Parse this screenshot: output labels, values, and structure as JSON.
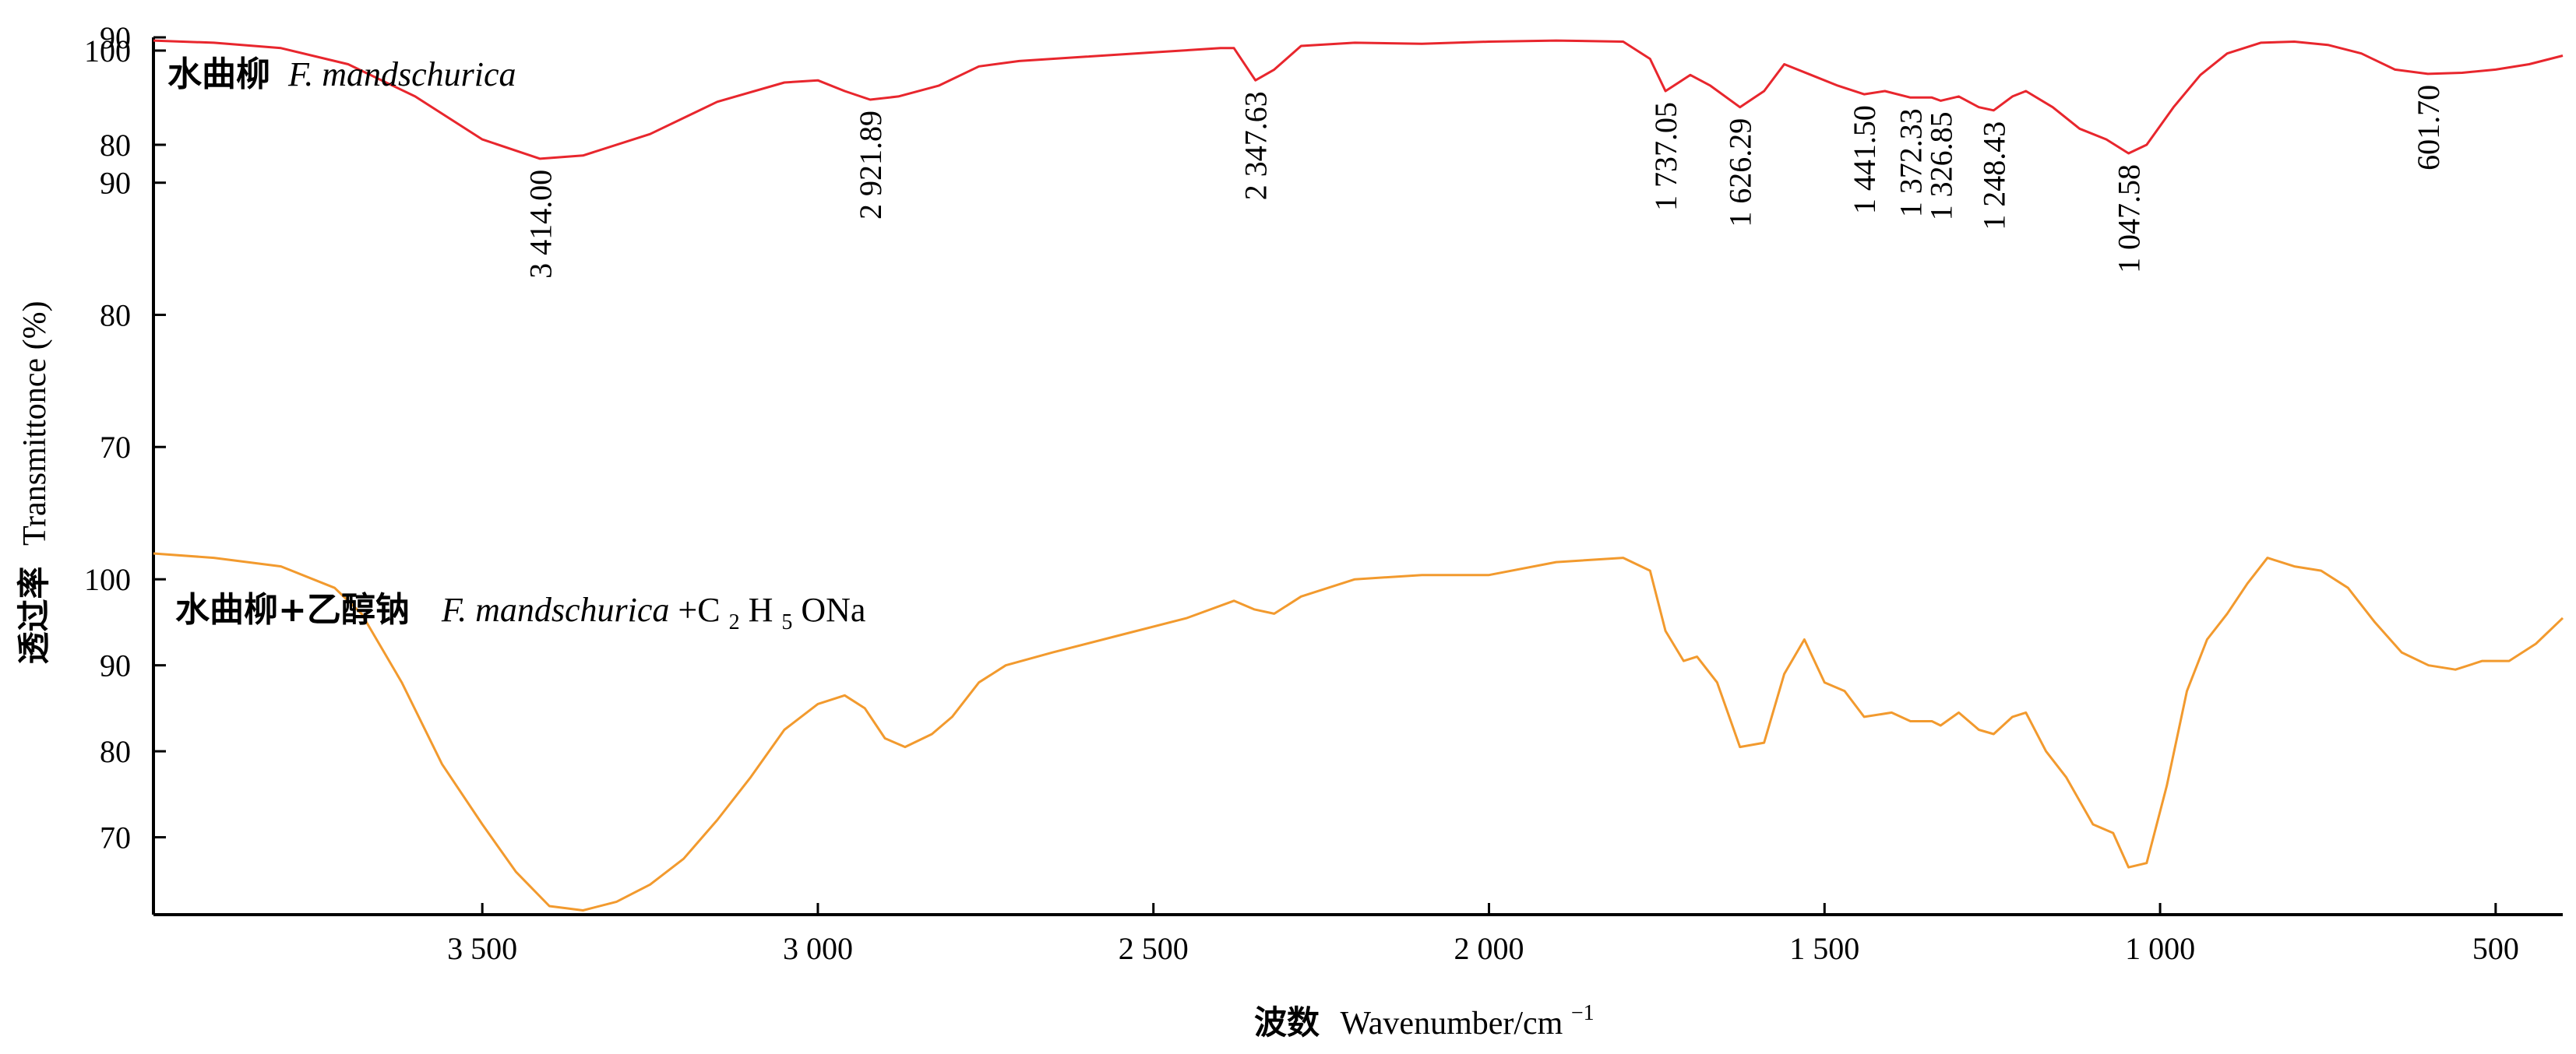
{
  "chart_data": {
    "type": "line",
    "xlabel_cn": "波数",
    "xlabel_en": "Wavenumber/cm",
    "xlabel_sup": "−1",
    "ylabel_cn": "透过率",
    "ylabel_en": "Transmittonce (%)",
    "xlim": [
      3990,
      400
    ],
    "x_ticks": [
      {
        "value": 3500,
        "label": "3 500"
      },
      {
        "value": 3000,
        "label": "3 000"
      },
      {
        "value": 2500,
        "label": "2 500"
      },
      {
        "value": 2000,
        "label": "2 000"
      },
      {
        "value": 1500,
        "label": "1 500"
      },
      {
        "value": 1000,
        "label": "1 000"
      },
      {
        "value": 500,
        "label": "500"
      }
    ],
    "panels": [
      {
        "id": "top",
        "ylim": [
          62,
          101
        ],
        "y_ticks": [
          {
            "value": 100,
            "label": "100"
          },
          {
            "value": 90,
            "label": "90"
          },
          {
            "value": 80,
            "label": "80"
          },
          {
            "value": 70,
            "label": "70"
          }
        ],
        "series": {
          "label_cn": "水曲柳",
          "label_en": "F. mandschurica",
          "color": "#e8262d",
          "points": [
            [
              3990,
              89.7
            ],
            [
              3900,
              89.5
            ],
            [
              3800,
              89.0
            ],
            [
              3700,
              87.5
            ],
            [
              3600,
              84.5
            ],
            [
              3500,
              80.5
            ],
            [
              3414,
              78.7
            ],
            [
              3350,
              79.0
            ],
            [
              3250,
              81.0
            ],
            [
              3150,
              84.0
            ],
            [
              3050,
              85.8
            ],
            [
              3000,
              86.0
            ],
            [
              2960,
              85.0
            ],
            [
              2922,
              84.2
            ],
            [
              2880,
              84.5
            ],
            [
              2820,
              85.5
            ],
            [
              2760,
              87.3
            ],
            [
              2700,
              87.8
            ],
            [
              2600,
              88.2
            ],
            [
              2500,
              88.6
            ],
            [
              2400,
              89.0
            ],
            [
              2380,
              89.0
            ],
            [
              2348,
              86.0
            ],
            [
              2320,
              87.0
            ],
            [
              2280,
              89.2
            ],
            [
              2200,
              89.5
            ],
            [
              2100,
              89.4
            ],
            [
              2000,
              89.6
            ],
            [
              1900,
              89.7
            ],
            [
              1800,
              89.6
            ],
            [
              1760,
              88.0
            ],
            [
              1737,
              85.0
            ],
            [
              1700,
              86.5
            ],
            [
              1670,
              85.5
            ],
            [
              1626,
              83.5
            ],
            [
              1590,
              85.0
            ],
            [
              1560,
              87.5
            ],
            [
              1520,
              86.5
            ],
            [
              1480,
              85.5
            ],
            [
              1441,
              84.7
            ],
            [
              1410,
              85.0
            ],
            [
              1372,
              84.4
            ],
            [
              1340,
              84.4
            ],
            [
              1327,
              84.1
            ],
            [
              1300,
              84.5
            ],
            [
              1270,
              83.5
            ],
            [
              1248,
              83.2
            ],
            [
              1220,
              84.5
            ],
            [
              1200,
              85.0
            ],
            [
              1160,
              83.5
            ],
            [
              1120,
              81.5
            ],
            [
              1080,
              80.5
            ],
            [
              1047,
              79.2
            ],
            [
              1020,
              80.0
            ],
            [
              980,
              83.5
            ],
            [
              940,
              86.5
            ],
            [
              900,
              88.5
            ],
            [
              850,
              89.5
            ],
            [
              800,
              89.6
            ],
            [
              750,
              89.3
            ],
            [
              700,
              88.5
            ],
            [
              650,
              87.0
            ],
            [
              601,
              86.6
            ],
            [
              550,
              86.7
            ],
            [
              500,
              87.0
            ],
            [
              450,
              87.5
            ],
            [
              400,
              88.3
            ]
          ]
        },
        "peaks": [
          {
            "x": 3414,
            "label": "3 414.00",
            "anchor_y": 78.7
          },
          {
            "x": 2922,
            "label": "2 921.89",
            "anchor_y": 84.2
          },
          {
            "x": 2348,
            "label": "2 347.63",
            "anchor_y": 86.0
          },
          {
            "x": 1737,
            "label": "1 737.05",
            "anchor_y": 85.0
          },
          {
            "x": 1626,
            "label": "1 626.29",
            "anchor_y": 83.5
          },
          {
            "x": 1441,
            "label": "1 441.50",
            "anchor_y": 84.7
          },
          {
            "x": 1372,
            "label": "1 372.33",
            "anchor_y": 84.4
          },
          {
            "x": 1327,
            "label": "1 326.85",
            "anchor_y": 84.1
          },
          {
            "x": 1248,
            "label": "1 248.43",
            "anchor_y": 83.2
          },
          {
            "x": 1047,
            "label": "1 047.58",
            "anchor_y": 79.2
          },
          {
            "x": 601,
            "label": "601.70",
            "anchor_y": 86.6
          }
        ],
        "upper_ticks": [
          {
            "value": 90,
            "label": "90"
          },
          {
            "value": 80,
            "label": "80"
          }
        ]
      },
      {
        "id": "bottom",
        "ylim": [
          61,
          104
        ],
        "y_ticks": [
          {
            "value": 100,
            "label": "100"
          },
          {
            "value": 90,
            "label": "90"
          },
          {
            "value": 80,
            "label": "80"
          },
          {
            "value": 70,
            "label": "70"
          }
        ],
        "series": {
          "label_cn": "水曲柳+乙醇钠",
          "label_en": "F. mandschurica",
          "label_plus": "+C",
          "label_sub1": "2",
          "label_h": "H",
          "label_sub2": "5",
          "label_ona": "ONa",
          "color": "#f29a2e",
          "points": [
            [
              3990,
              103.0
            ],
            [
              3900,
              102.5
            ],
            [
              3800,
              101.5
            ],
            [
              3720,
              99.0
            ],
            [
              3680,
              96.0
            ],
            [
              3620,
              88.0
            ],
            [
              3560,
              78.5
            ],
            [
              3500,
              71.5
            ],
            [
              3450,
              66.0
            ],
            [
              3400,
              62.0
            ],
            [
              3350,
              61.5
            ],
            [
              3300,
              62.5
            ],
            [
              3250,
              64.5
            ],
            [
              3200,
              67.5
            ],
            [
              3150,
              72.0
            ],
            [
              3100,
              77.0
            ],
            [
              3050,
              82.5
            ],
            [
              3000,
              85.5
            ],
            [
              2960,
              86.5
            ],
            [
              2930,
              85.0
            ],
            [
              2900,
              81.5
            ],
            [
              2870,
              80.5
            ],
            [
              2830,
              82.0
            ],
            [
              2800,
              84.0
            ],
            [
              2760,
              88.0
            ],
            [
              2720,
              90.0
            ],
            [
              2650,
              91.5
            ],
            [
              2550,
              93.5
            ],
            [
              2450,
              95.5
            ],
            [
              2380,
              97.5
            ],
            [
              2350,
              96.5
            ],
            [
              2320,
              96.0
            ],
            [
              2280,
              98.0
            ],
            [
              2200,
              100.0
            ],
            [
              2100,
              100.5
            ],
            [
              2000,
              100.5
            ],
            [
              1900,
              102.0
            ],
            [
              1800,
              102.5
            ],
            [
              1760,
              101.0
            ],
            [
              1737,
              94.0
            ],
            [
              1710,
              90.5
            ],
            [
              1690,
              91.0
            ],
            [
              1660,
              88.0
            ],
            [
              1626,
              80.5
            ],
            [
              1590,
              81.0
            ],
            [
              1560,
              89.0
            ],
            [
              1530,
              93.0
            ],
            [
              1500,
              88.0
            ],
            [
              1470,
              87.0
            ],
            [
              1441,
              84.0
            ],
            [
              1400,
              84.5
            ],
            [
              1372,
              83.5
            ],
            [
              1340,
              83.5
            ],
            [
              1327,
              83.0
            ],
            [
              1300,
              84.5
            ],
            [
              1270,
              82.5
            ],
            [
              1248,
              82.0
            ],
            [
              1220,
              84.0
            ],
            [
              1200,
              84.5
            ],
            [
              1170,
              80.0
            ],
            [
              1140,
              77.0
            ],
            [
              1100,
              71.5
            ],
            [
              1070,
              70.5
            ],
            [
              1047,
              66.5
            ],
            [
              1020,
              67.0
            ],
            [
              990,
              76.0
            ],
            [
              960,
              87.0
            ],
            [
              930,
              93.0
            ],
            [
              900,
              96.0
            ],
            [
              870,
              99.5
            ],
            [
              840,
              102.5
            ],
            [
              800,
              101.5
            ],
            [
              760,
              101.0
            ],
            [
              720,
              99.0
            ],
            [
              680,
              95.0
            ],
            [
              640,
              91.5
            ],
            [
              600,
              90.0
            ],
            [
              560,
              89.5
            ],
            [
              520,
              90.5
            ],
            [
              480,
              90.5
            ],
            [
              440,
              92.5
            ],
            [
              400,
              95.5
            ]
          ]
        }
      }
    ]
  }
}
